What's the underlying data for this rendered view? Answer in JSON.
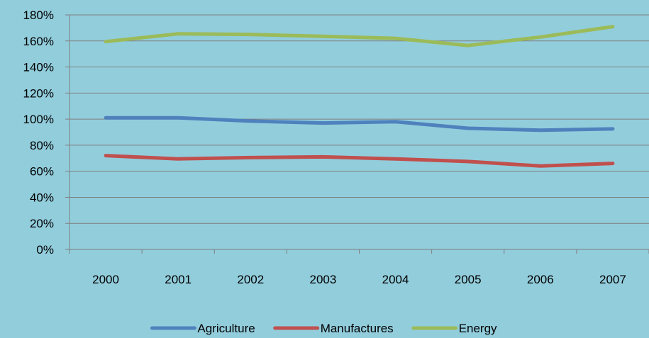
{
  "chart_data": {
    "type": "line",
    "categories": [
      "2000",
      "2001",
      "2002",
      "2003",
      "2004",
      "2005",
      "2006",
      "2007"
    ],
    "series": [
      {
        "name": "Agriculture",
        "color": "#4F81BD",
        "values": [
          101,
          101,
          98.5,
          97,
          98,
          93,
          91.5,
          92.5
        ]
      },
      {
        "name": "Manufactures",
        "color": "#C0504D",
        "values": [
          72,
          69.5,
          70.5,
          71,
          69.5,
          67.5,
          64,
          66
        ]
      },
      {
        "name": "Energy",
        "color": "#9BBB59",
        "values": [
          159.5,
          165.5,
          165,
          163.5,
          162,
          156.5,
          163,
          171
        ]
      }
    ],
    "y_ticks": [
      "0%",
      "20%",
      "40%",
      "60%",
      "80%",
      "100%",
      "120%",
      "140%",
      "160%",
      "180%"
    ],
    "ylim": [
      0,
      180
    ],
    "y_unit": "%",
    "grid": true,
    "legend_position": "bottom",
    "background_color": "#92CDDC",
    "gridline_color": "#7F7F7F"
  }
}
